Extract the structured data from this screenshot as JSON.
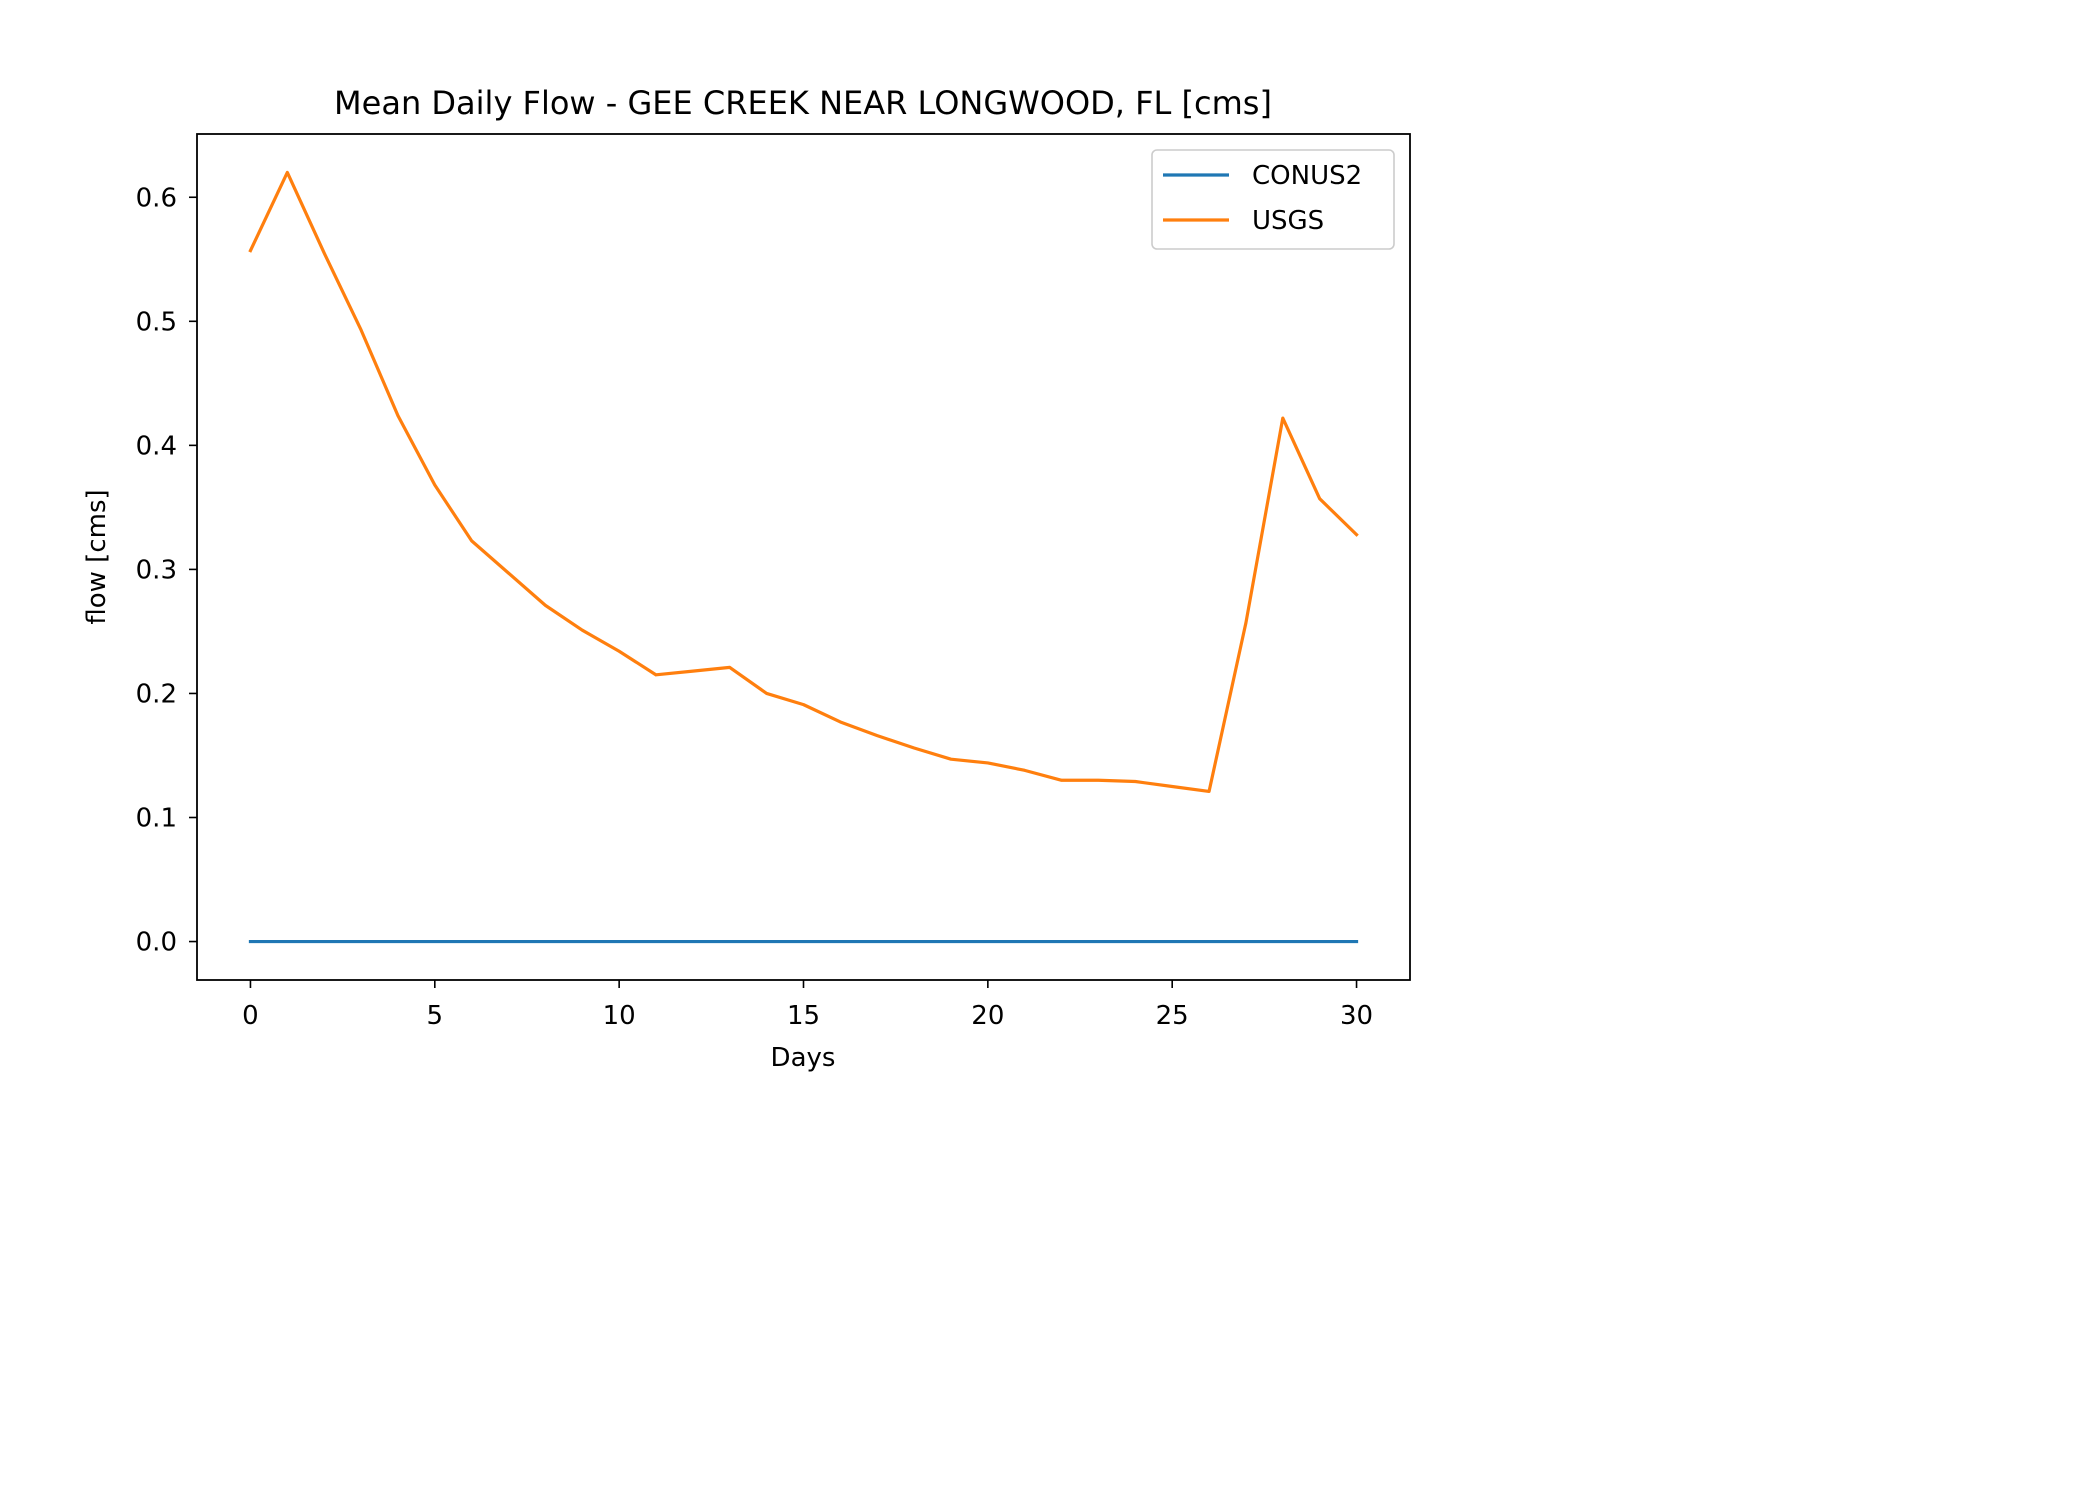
{
  "chart_data": {
    "type": "line",
    "title": "Mean Daily Flow - GEE CREEK NEAR LONGWOOD, FL [cms]",
    "xlabel": "Days",
    "ylabel": "flow [cms]",
    "xlim": [
      -1.45,
      31.45
    ],
    "ylim": [
      -0.031,
      0.651
    ],
    "xticks": [
      0,
      5,
      10,
      15,
      20,
      25,
      30
    ],
    "xtick_labels": [
      "0",
      "5",
      "10",
      "15",
      "20",
      "25",
      "30"
    ],
    "yticks": [
      0.0,
      0.1,
      0.2,
      0.3,
      0.4,
      0.5,
      0.6
    ],
    "ytick_labels": [
      "0.0",
      "0.1",
      "0.2",
      "0.3",
      "0.4",
      "0.5",
      "0.6"
    ],
    "grid": false,
    "legend_position": "upper right",
    "x": [
      0,
      1,
      2,
      3,
      4,
      5,
      6,
      7,
      8,
      9,
      10,
      11,
      12,
      13,
      14,
      15,
      16,
      17,
      18,
      19,
      20,
      21,
      22,
      23,
      24,
      25,
      26,
      27,
      28,
      29,
      30
    ],
    "series": [
      {
        "name": "CONUS2",
        "color": "#1f77b4",
        "values": [
          0,
          0,
          0,
          0,
          0,
          0,
          0,
          0,
          0,
          0,
          0,
          0,
          0,
          0,
          0,
          0,
          0,
          0,
          0,
          0,
          0,
          0,
          0,
          0,
          0,
          0,
          0,
          0,
          0,
          0,
          0
        ]
      },
      {
        "name": "USGS",
        "color": "#ff7f0e",
        "values": [
          0.557,
          0.62,
          0.555,
          0.493,
          0.424,
          0.368,
          0.323,
          0.297,
          0.271,
          0.251,
          0.234,
          0.215,
          0.218,
          0.221,
          0.2,
          0.191,
          0.177,
          0.166,
          0.156,
          0.147,
          0.144,
          0.138,
          0.13,
          0.13,
          0.129,
          0.125,
          0.121,
          0.257,
          0.422,
          0.357,
          0.328
        ]
      }
    ]
  }
}
